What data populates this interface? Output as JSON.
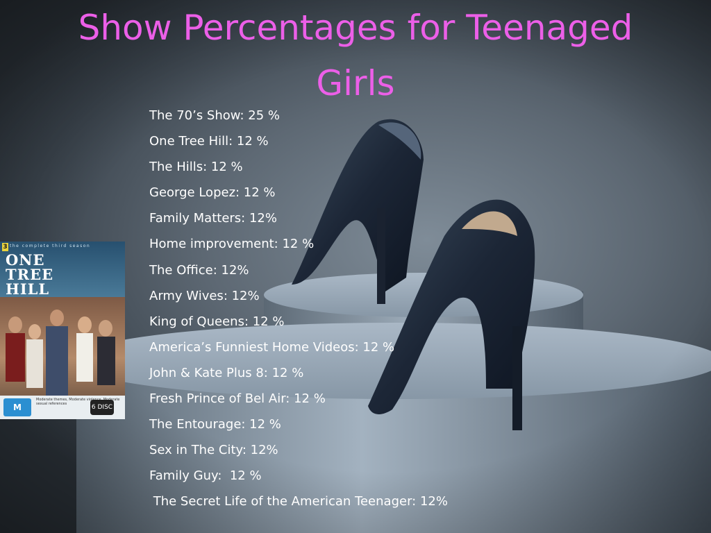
{
  "title": "Show Percentages for Teenaged Girls",
  "shows": [
    "The 70’s Show: 25 %",
    "One Tree Hill: 12 %",
    "The Hills: 12 %",
    "George Lopez: 12 %",
    "Family Matters: 12%",
    "Home improvement: 12 %",
    "The Office: 12%",
    "Army Wives: 12%",
    "King of Queens: 12 %",
    "America’s Funniest Home Videos: 12 %",
    "John & Kate Plus 8: 12 %",
    "Fresh Prince of Bel Air: 12 %",
    "The Entourage: 12 %",
    "Sex in The City: 12%",
    "Family Guy:  12 %",
    " The Secret Life of the American Teenager: 12%"
  ],
  "dvd": {
    "number": "3",
    "tagline": "the complete third season",
    "logo_line1": "ONE",
    "logo_line2": "TREE",
    "logo_line3": "HILL",
    "rating": "M",
    "rating_text": "Moderate themes, Moderate violence, Moderate sexual references",
    "disc": "6 DISC SET"
  },
  "colors": {
    "title": "#ec5fe8",
    "text": "#ffffff",
    "background": "#5d6873"
  }
}
